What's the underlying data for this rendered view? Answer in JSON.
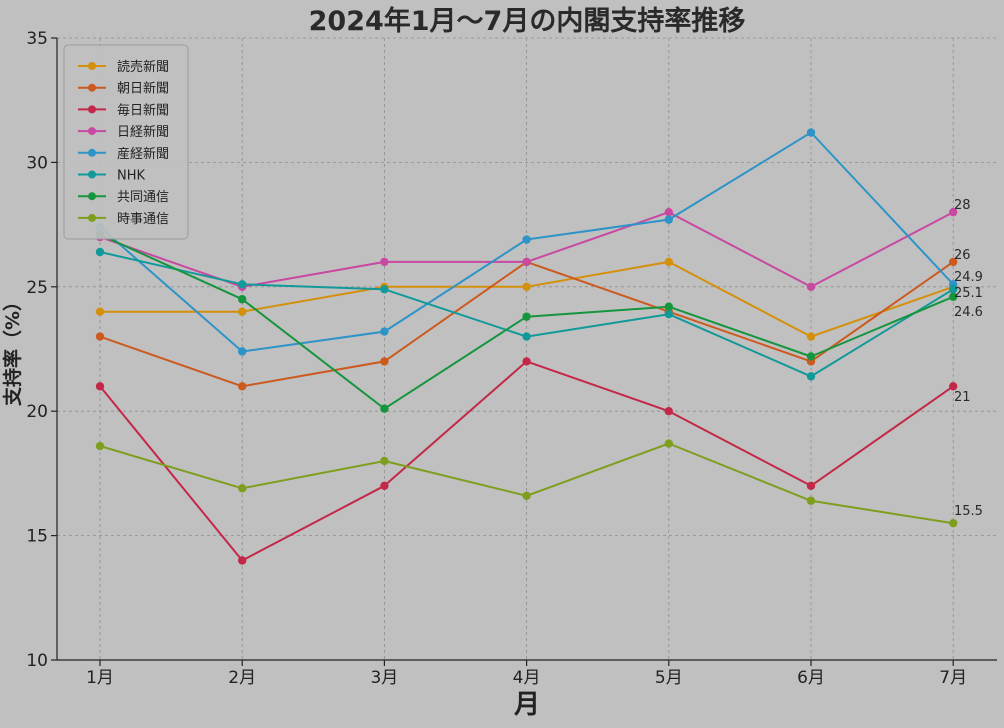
{
  "chart_data": {
    "type": "line",
    "title": "2024年1月〜7月の内閣支持率推移",
    "xlabel": "月",
    "ylabel": "支持率（%）",
    "categories": [
      "1月",
      "2月",
      "3月",
      "4月",
      "5月",
      "6月",
      "7月"
    ],
    "ylim": [
      10,
      35
    ],
    "yticks": [
      10,
      15,
      20,
      25,
      30,
      35
    ],
    "grid": true,
    "legend_position": "top-left",
    "series": [
      {
        "name": "読売新聞",
        "color": "#d4900a",
        "values": [
          24,
          24,
          25,
          25,
          26,
          23,
          25
        ]
      },
      {
        "name": "朝日新聞",
        "color": "#cc5a1e",
        "values": [
          23,
          21,
          22,
          26,
          24,
          22,
          26
        ]
      },
      {
        "name": "毎日新聞",
        "color": "#c42848",
        "values": [
          21,
          14,
          17,
          22,
          20,
          17,
          21
        ]
      },
      {
        "name": "日経新聞",
        "color": "#c848a2",
        "values": [
          27,
          25,
          26,
          26,
          28,
          25,
          28
        ]
      },
      {
        "name": "産経新聞",
        "color": "#2e94c8",
        "values": [
          27.4,
          22.4,
          23.2,
          26.9,
          27.7,
          31.2,
          25.1
        ]
      },
      {
        "name": "NHK",
        "color": "#12999a",
        "values": [
          26.4,
          25.1,
          24.9,
          23,
          23.9,
          21.4,
          24.9
        ]
      },
      {
        "name": "共同通信",
        "color": "#15963e",
        "values": [
          27.1,
          24.5,
          20.1,
          23.8,
          24.2,
          22.2,
          24.6
        ]
      },
      {
        "name": "時事通信",
        "color": "#7e9e1e",
        "values": [
          18.6,
          16.9,
          18,
          16.6,
          18.7,
          16.4,
          15.5
        ]
      }
    ],
    "end_labels": [
      "28",
      "26",
      "24.9",
      "25.1",
      "24.6",
      "21",
      "15.5"
    ]
  }
}
